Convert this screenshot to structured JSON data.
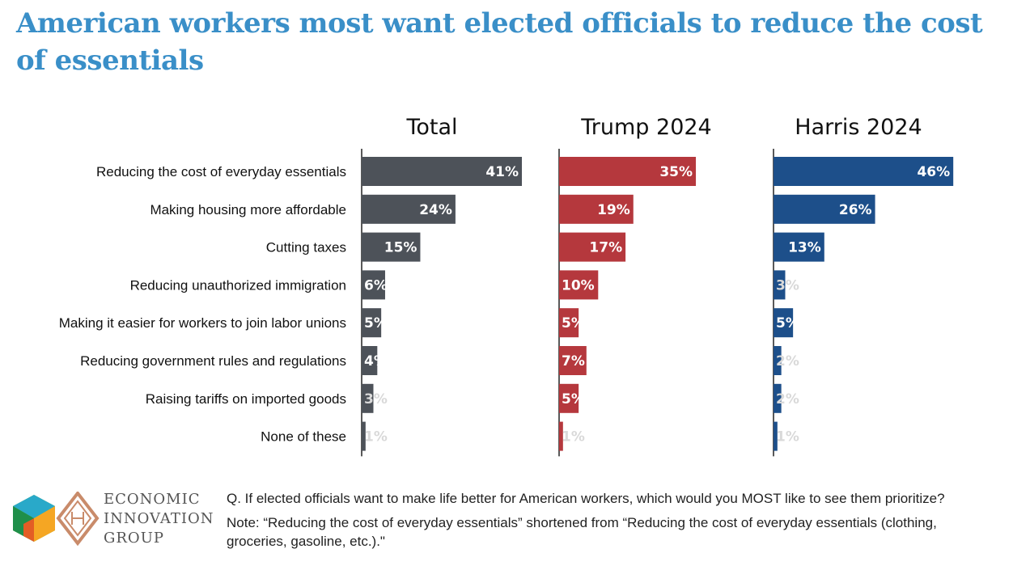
{
  "title": "American workers most want elected officials to reduce the cost of essentials",
  "footer": {
    "org_name": [
      "ECONOMIC",
      "INNOVATION",
      "GROUP"
    ],
    "question": "Q. If elected officials want to make life better for American workers, which would you MOST like to see them prioritize?",
    "note": "Note: “Reducing the cost of everyday essentials” shortened from “Reducing the cost of everyday essentials (clothing, groceries, gasoline, etc.).\""
  },
  "chart_data": {
    "type": "bar",
    "orientation": "horizontal",
    "categories": [
      "Reducing the cost of everyday essentials",
      "Making housing more affordable",
      "Cutting taxes",
      "Reducing unauthorized immigration",
      "Making it easier for workers to join labor unions",
      "Reducing government rules and regulations",
      "Raising tariffs on imported goods",
      "None of these"
    ],
    "unit": "%",
    "xlim": [
      0,
      50
    ],
    "grid": false,
    "series": [
      {
        "name": "Total",
        "color": "#4d5259",
        "values": [
          41,
          24,
          15,
          6,
          5,
          4,
          3,
          1
        ]
      },
      {
        "name": "Trump 2024",
        "color": "#b5383d",
        "values": [
          35,
          19,
          17,
          10,
          5,
          7,
          5,
          1
        ]
      },
      {
        "name": "Harris 2024",
        "color": "#1d4f8a",
        "values": [
          46,
          26,
          13,
          3,
          5,
          2,
          2,
          1
        ]
      }
    ]
  }
}
